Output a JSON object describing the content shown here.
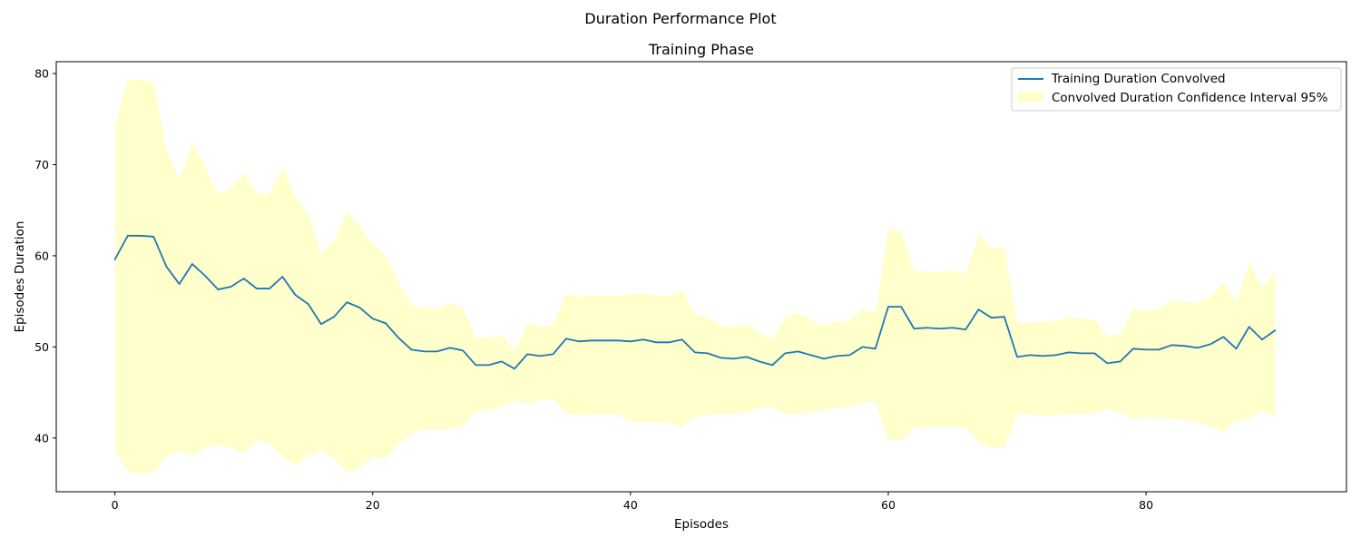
{
  "chart_data": {
    "type": "line",
    "suptitle": "Duration Performance Plot",
    "title": "Training Phase",
    "xlabel": "Episodes",
    "ylabel": "Episodes Duration",
    "xlim": [
      -4.55,
      95.55
    ],
    "ylim": [
      34.1,
      81.3
    ],
    "xticks": [
      0,
      20,
      40,
      60,
      80
    ],
    "yticks": [
      40,
      50,
      60,
      70,
      80
    ],
    "grid": false,
    "legend_position": "top-right",
    "series": [
      {
        "name": "Training Duration Convolved",
        "kind": "line",
        "color": "#1f77b4",
        "x": [
          0,
          1,
          2,
          3,
          4,
          5,
          6,
          7,
          8,
          9,
          10,
          11,
          12,
          13,
          14,
          15,
          16,
          17,
          18,
          19,
          20,
          21,
          22,
          23,
          24,
          25,
          26,
          27,
          28,
          29,
          30,
          31,
          32,
          33,
          34,
          35,
          36,
          37,
          38,
          39,
          40,
          41,
          42,
          43,
          44,
          45,
          46,
          47,
          48,
          49,
          50,
          51,
          52,
          53,
          54,
          55,
          56,
          57,
          58,
          59,
          60,
          61,
          62,
          63,
          64,
          65,
          66,
          67,
          68,
          69,
          70,
          71,
          72,
          73,
          74,
          75,
          76,
          77,
          78,
          79,
          80,
          81,
          82,
          83,
          84,
          85,
          86,
          87,
          88,
          89,
          90
        ],
        "y": [
          59.6,
          62.2,
          62.2,
          62.1,
          58.8,
          56.9,
          59.1,
          57.8,
          56.3,
          56.6,
          57.5,
          56.4,
          56.4,
          57.7,
          55.7,
          54.7,
          52.5,
          53.3,
          54.9,
          54.3,
          53.1,
          52.6,
          51.0,
          49.7,
          49.5,
          49.5,
          49.9,
          49.6,
          48.0,
          48.0,
          48.4,
          47.6,
          49.2,
          49.0,
          49.2,
          50.9,
          50.6,
          50.7,
          50.7,
          50.7,
          50.6,
          50.8,
          50.5,
          50.5,
          50.8,
          49.4,
          49.3,
          48.8,
          48.7,
          48.9,
          48.4,
          48.0,
          49.3,
          49.5,
          49.1,
          48.7,
          49.0,
          49.1,
          50.0,
          49.8,
          54.4,
          54.4,
          52.0,
          52.1,
          52.0,
          52.1,
          51.9,
          54.1,
          53.2,
          53.3,
          48.9,
          49.1,
          49.0,
          49.1,
          49.4,
          49.3,
          49.3,
          48.2,
          48.4,
          49.8,
          49.7,
          49.7,
          50.2,
          50.1,
          49.9,
          50.3,
          51.1,
          49.8,
          52.2,
          50.8,
          51.8
        ]
      },
      {
        "name": "Convolved Duration Confidence Interval 95%",
        "kind": "band",
        "color": "#ffffcc",
        "x": [
          0,
          1,
          2,
          3,
          4,
          5,
          6,
          7,
          8,
          9,
          10,
          11,
          12,
          13,
          14,
          15,
          16,
          17,
          18,
          19,
          20,
          21,
          22,
          23,
          24,
          25,
          26,
          27,
          28,
          29,
          30,
          31,
          32,
          33,
          34,
          35,
          36,
          37,
          38,
          39,
          40,
          41,
          42,
          43,
          44,
          45,
          46,
          47,
          48,
          49,
          50,
          51,
          52,
          53,
          54,
          55,
          56,
          57,
          58,
          59,
          60,
          61,
          62,
          63,
          64,
          65,
          66,
          67,
          68,
          69,
          70,
          71,
          72,
          73,
          74,
          75,
          76,
          77,
          78,
          79,
          80,
          81,
          82,
          83,
          84,
          85,
          86,
          87,
          88,
          89,
          90
        ],
        "upper": [
          74.2,
          79.4,
          79.3,
          79.1,
          71.8,
          68.3,
          72.4,
          69.8,
          66.8,
          67.4,
          69.2,
          66.9,
          66.8,
          69.8,
          66.5,
          64.6,
          60.2,
          61.7,
          64.9,
          63.3,
          61.3,
          60.1,
          57.1,
          54.6,
          54.3,
          54.2,
          54.8,
          54.2,
          51.0,
          51.0,
          51.3,
          49.6,
          52.6,
          52.2,
          52.5,
          55.9,
          55.5,
          55.7,
          55.6,
          55.6,
          55.8,
          55.9,
          55.7,
          55.6,
          56.2,
          53.6,
          53.2,
          52.3,
          52.2,
          52.5,
          51.6,
          50.9,
          53.3,
          53.7,
          53.0,
          52.3,
          52.8,
          52.9,
          54.2,
          53.8,
          63.0,
          62.8,
          58.3,
          58.3,
          58.2,
          58.4,
          58.0,
          62.4,
          60.9,
          61.0,
          52.6,
          52.7,
          52.7,
          52.9,
          53.3,
          53.1,
          53.0,
          51.2,
          51.4,
          54.2,
          54.0,
          54.1,
          55.1,
          55.0,
          54.8,
          55.5,
          57.1,
          54.8,
          59.3,
          56.5,
          58.3
        ],
        "lower": [
          38.6,
          36.3,
          36.1,
          36.2,
          38.1,
          38.6,
          38.1,
          39.0,
          39.3,
          38.9,
          38.3,
          39.7,
          39.4,
          38.0,
          37.0,
          38.1,
          38.6,
          37.8,
          36.2,
          36.8,
          37.9,
          37.8,
          39.3,
          40.5,
          40.9,
          41.0,
          41.0,
          41.3,
          43.0,
          43.0,
          43.5,
          44.1,
          43.8,
          44.1,
          44.3,
          42.7,
          42.5,
          42.6,
          42.6,
          42.6,
          41.8,
          41.8,
          41.7,
          41.7,
          41.2,
          42.4,
          42.5,
          42.7,
          42.7,
          42.8,
          43.3,
          43.4,
          42.6,
          42.6,
          42.8,
          43.1,
          43.3,
          43.4,
          43.9,
          44.0,
          39.8,
          39.8,
          41.1,
          41.2,
          41.2,
          41.2,
          41.2,
          39.5,
          38.9,
          38.9,
          42.6,
          42.6,
          42.4,
          42.5,
          42.6,
          42.7,
          42.7,
          43.2,
          42.8,
          42.1,
          42.3,
          42.3,
          42.2,
          42.0,
          41.7,
          41.3,
          40.7,
          41.9,
          42.1,
          43.1,
          42.4
        ]
      }
    ]
  }
}
